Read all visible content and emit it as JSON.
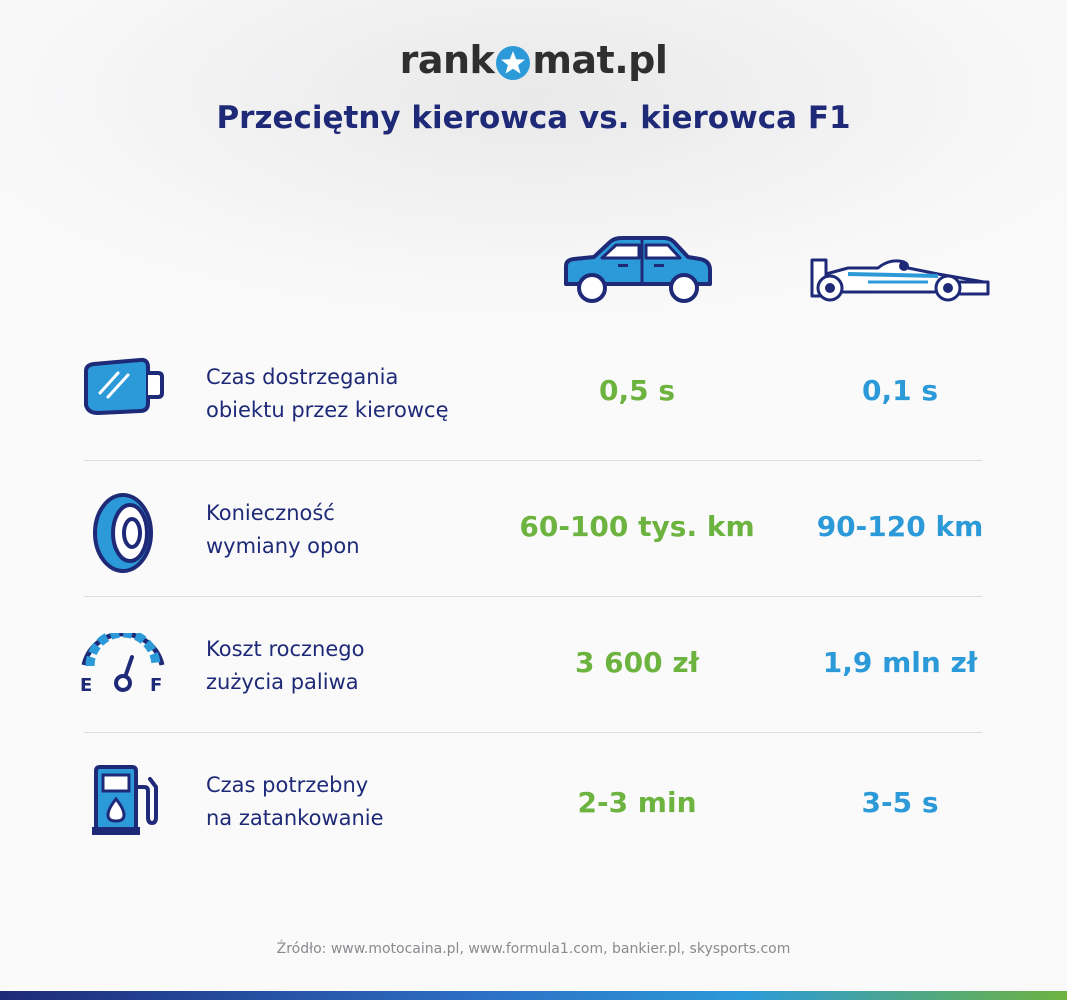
{
  "brand": {
    "prefix": "rank",
    "suffix": "mat.pl"
  },
  "title": "Przeciętny kierowca vs. kierowca F1",
  "columns": [
    {
      "icon": "car-icon"
    },
    {
      "icon": "f1-car-icon"
    }
  ],
  "rows": [
    {
      "icon": "mirror-icon",
      "label_line1": "Czas dostrzegania",
      "label_line2": "obiektu przez kierowcę",
      "avg": "0,5 s",
      "f1": "0,1 s"
    },
    {
      "icon": "tire-icon",
      "label_line1": "Konieczność",
      "label_line2": "wymiany opon",
      "avg": "60-100 tys. km",
      "f1": "90-120 km"
    },
    {
      "icon": "fuel-gauge-icon",
      "label_line1": "Koszt rocznego",
      "label_line2": "zużycia paliwa",
      "avg": "3 600 zł",
      "f1": "1,9 mln zł"
    },
    {
      "icon": "fuel-pump-icon",
      "label_line1": "Czas potrzebny",
      "label_line2": "na zatankowanie",
      "avg": "2-3 min",
      "f1": "3-5 s"
    }
  ],
  "gauge": {
    "empty": "E",
    "full": "F"
  },
  "source": "Źródło: www.motocaina.pl, www.formula1.com, bankier.pl, skysports.com",
  "colors": {
    "navy": "#1e2a78",
    "blue": "#2c9ad8",
    "green": "#6db33f"
  }
}
